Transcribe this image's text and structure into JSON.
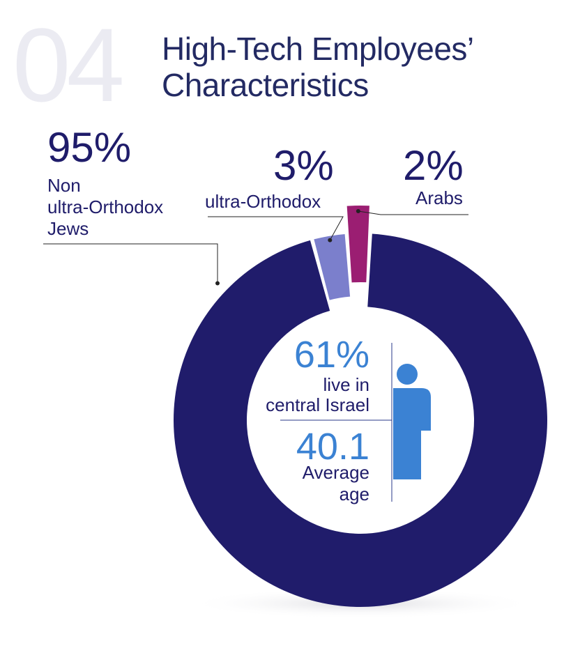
{
  "section_number": "04",
  "title": {
    "line1": "High-Tech Employees’",
    "line2": "Characteristics"
  },
  "chart_data": {
    "type": "pie",
    "style": "donut",
    "slices": [
      {
        "name": "Non ultra-Orthodox Jews",
        "value": 95,
        "label": "95%",
        "desc_lines": [
          "Non",
          "ultra-Orthodox",
          "Jews"
        ],
        "color": "#201c6b"
      },
      {
        "name": "ultra-Orthodox",
        "value": 3,
        "label": "3%",
        "desc_lines": [
          "ultra-Orthodox"
        ],
        "color": "#7b7fcc"
      },
      {
        "name": "Arabs",
        "value": 2,
        "label": "2%",
        "desc_lines": [
          "Arabs"
        ],
        "color": "#9b1e72"
      }
    ],
    "center_stats": [
      {
        "value": "61%",
        "desc_lines": [
          "live in",
          "central Israel"
        ]
      },
      {
        "value": "40.1",
        "desc_lines": [
          "Average",
          "age"
        ]
      }
    ],
    "icon": "person-icon"
  },
  "colors": {
    "navy": "#201c6b",
    "light_purple": "#7b7fcc",
    "magenta": "#9b1e72",
    "accent_blue": "#3b82d3",
    "watermark_gray": "#ebebf2"
  }
}
